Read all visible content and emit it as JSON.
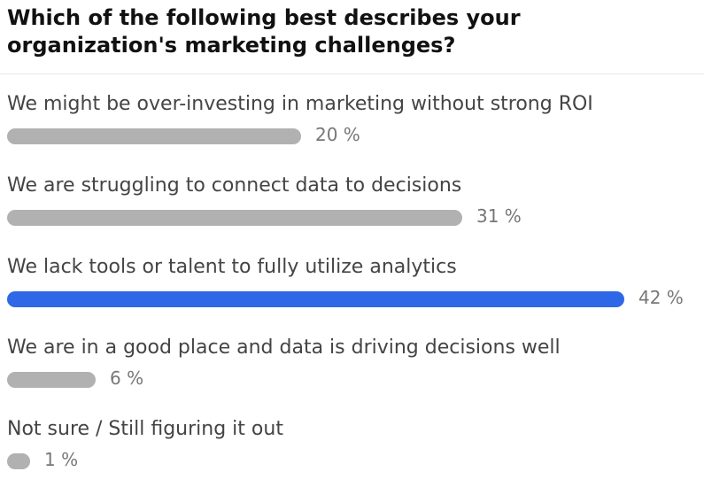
{
  "poll": {
    "question": "Which of the following best describes your organization's marketing challenges?",
    "bar_color_default": "#b1b1b1",
    "bar_color_selected": "#2f68e6",
    "options": [
      {
        "label": "We might be over-investing in marketing without strong ROI",
        "percent_label": "20 %",
        "percent": 20,
        "selected": false
      },
      {
        "label": "We are struggling to connect data to decisions",
        "percent_label": "31 %",
        "percent": 31,
        "selected": false
      },
      {
        "label": "We lack tools or talent to fully utilize analytics",
        "percent_label": "42 %",
        "percent": 42,
        "selected": true
      },
      {
        "label": "We are in a good place and data is driving decisions well",
        "percent_label": "6 %",
        "percent": 6,
        "selected": false
      },
      {
        "label": "Not sure / Still figuring it out",
        "percent_label": "1 %",
        "percent": 1,
        "selected": false
      }
    ]
  }
}
